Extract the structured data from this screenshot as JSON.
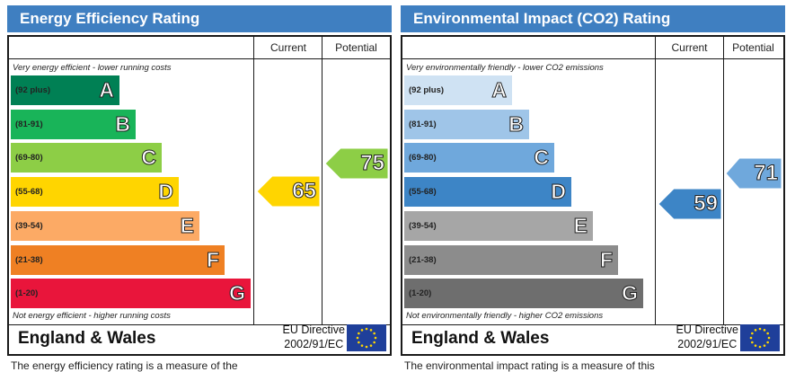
{
  "energy": {
    "title": "Energy Efficiency Rating",
    "col_current": "Current",
    "col_potential": "Potential",
    "top_note": "Very energy efficient - lower running costs",
    "bottom_note": "Not energy efficient - higher running costs",
    "bands": [
      {
        "letter": "A",
        "range": "(92 plus)",
        "color": "#008054"
      },
      {
        "letter": "B",
        "range": "(81-91)",
        "color": "#19b459"
      },
      {
        "letter": "C",
        "range": "(69-80)",
        "color": "#8dce46"
      },
      {
        "letter": "D",
        "range": "(55-68)",
        "color": "#ffd500"
      },
      {
        "letter": "E",
        "range": "(39-54)",
        "color": "#fcaa65"
      },
      {
        "letter": "F",
        "range": "(21-38)",
        "color": "#ef8023"
      },
      {
        "letter": "G",
        "range": "(1-20)",
        "color": "#e9153b"
      }
    ],
    "current": {
      "value": "65",
      "band": "D",
      "color": "#ffd500"
    },
    "potential": {
      "value": "75",
      "band": "C",
      "color": "#8dce46"
    },
    "country": "England & Wales",
    "directive_line1": "EU Directive",
    "directive_line2": "2002/91/EC",
    "description": "The energy efficiency rating is a measure of the"
  },
  "environment": {
    "title": "Environmental Impact (CO2) Rating",
    "col_current": "Current",
    "col_potential": "Potential",
    "top_note": "Very environmentally friendly - lower CO2 emissions",
    "bottom_note": "Not environmentally friendly - higher CO2 emissions",
    "bands": [
      {
        "letter": "A",
        "range": "(92 plus)",
        "color": "#cfe2f3"
      },
      {
        "letter": "B",
        "range": "(81-91)",
        "color": "#9fc5e8"
      },
      {
        "letter": "C",
        "range": "(69-80)",
        "color": "#6fa8dc"
      },
      {
        "letter": "D",
        "range": "(55-68)",
        "color": "#3d85c6"
      },
      {
        "letter": "E",
        "range": "(39-54)",
        "color": "#a6a6a6"
      },
      {
        "letter": "F",
        "range": "(21-38)",
        "color": "#8c8c8c"
      },
      {
        "letter": "G",
        "range": "(1-20)",
        "color": "#6e6e6e"
      }
    ],
    "current": {
      "value": "59",
      "band": "D",
      "color": "#3d85c6"
    },
    "potential": {
      "value": "71",
      "band": "C",
      "color": "#6fa8dc"
    },
    "country": "England & Wales",
    "directive_line1": "EU Directive",
    "directive_line2": "2002/91/EC",
    "description": "The environmental impact rating is a measure of this"
  }
}
